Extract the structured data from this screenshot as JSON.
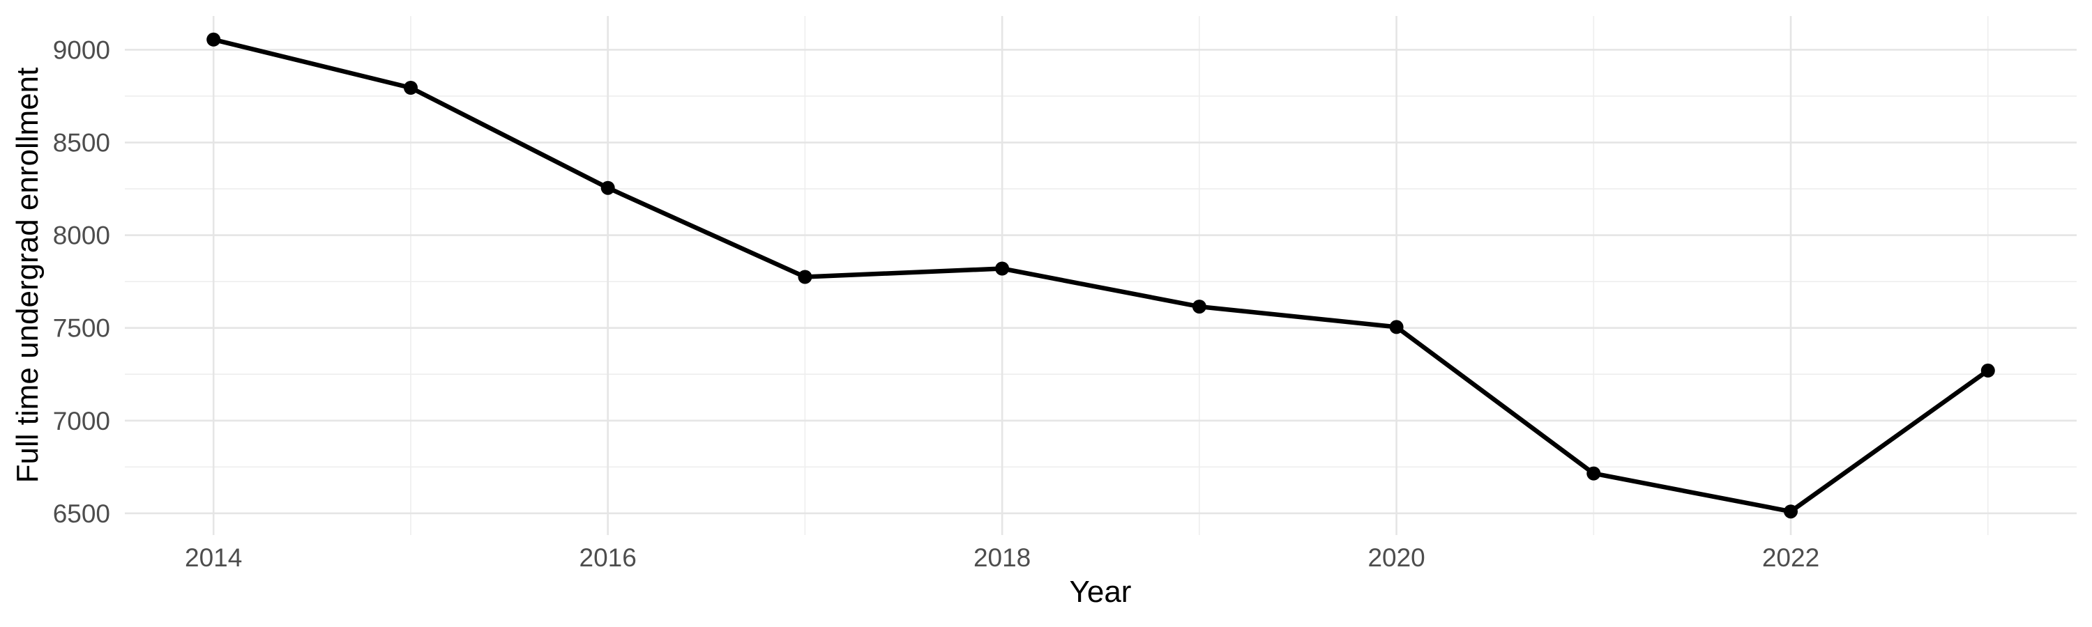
{
  "chart_data": {
    "type": "line",
    "title": "",
    "xlabel": "Year",
    "ylabel": "Full time undergrad enrollment",
    "x": [
      2014,
      2015,
      2016,
      2017,
      2018,
      2019,
      2020,
      2021,
      2022,
      2023
    ],
    "values": [
      9055,
      8795,
      8255,
      7775,
      7820,
      7615,
      7505,
      6715,
      6510,
      7270
    ],
    "x_tick_labels": [
      "2014",
      "2016",
      "2018",
      "2020",
      "2022"
    ],
    "x_ticks": [
      2014,
      2016,
      2018,
      2020,
      2022
    ],
    "x_minor_ticks": [
      2015,
      2017,
      2019,
      2021,
      2023
    ],
    "y_tick_labels": [
      "6500",
      "7000",
      "7500",
      "8000",
      "8500",
      "9000"
    ],
    "y_ticks": [
      6500,
      7000,
      7500,
      8000,
      8500,
      9000
    ],
    "y_minor_ticks": [
      6750,
      7250,
      7750,
      8250,
      8750
    ],
    "xlim": [
      2013.55,
      2023.45
    ],
    "ylim": [
      6383,
      9182
    ],
    "grid": "major-and-minor",
    "legend": "none",
    "point_marker": "filled-circle",
    "colors": {
      "line": "#000000",
      "point": "#000000",
      "grid_major": "#e5e5e5",
      "grid_minor": "#eeeeee",
      "tick_label": "#4d4d4d",
      "axis_title": "#000000",
      "background": "#ffffff"
    }
  }
}
